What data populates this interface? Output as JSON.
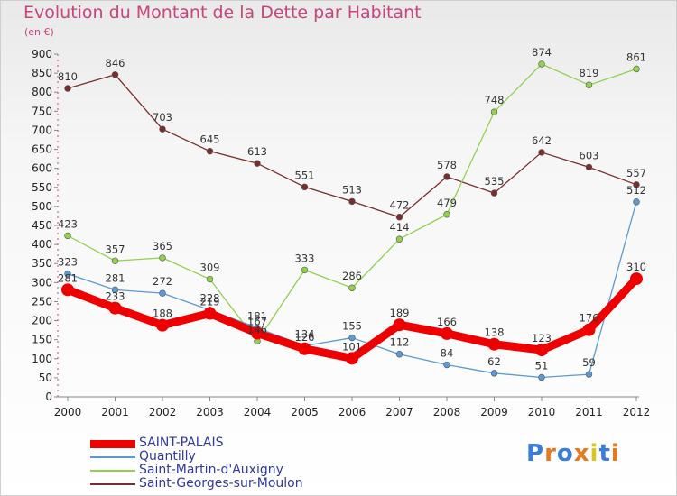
{
  "chart_data": {
    "type": "line",
    "title": "Evolution du Montant de la Dette par Habitant",
    "subtitle": "(en €)",
    "x": [
      "2000",
      "2001",
      "2002",
      "2003",
      "2004",
      "2005",
      "2006",
      "2007",
      "2008",
      "2009",
      "2010",
      "2011",
      "2012"
    ],
    "yticks": [
      "0",
      "50",
      "100",
      "150",
      "200",
      "250",
      "300",
      "350",
      "400",
      "450",
      "500",
      "550",
      "600",
      "650",
      "700",
      "750",
      "800",
      "850",
      "900"
    ],
    "ylim": [
      0,
      900
    ],
    "grid": false,
    "legend_position": "bottom-left",
    "series": [
      {
        "name": "SAINT-PALAIS",
        "color": "#ee0000",
        "values": [
          281,
          233,
          188,
          219,
          167,
          126,
          101,
          189,
          166,
          138,
          123,
          176,
          310
        ],
        "labels": [
          "281",
          "233",
          "188",
          "219",
          "167",
          "126",
          "101",
          "189",
          "166",
          "138",
          "123",
          "176",
          "310"
        ]
      },
      {
        "name": "Quantilly",
        "color": "#5a9ad5",
        "values": [
          323,
          281,
          272,
          228,
          181,
          134,
          155,
          112,
          84,
          62,
          51,
          59,
          512
        ],
        "labels": [
          "323",
          "281",
          "272",
          "228",
          "181",
          "134",
          "155",
          "112",
          "84",
          "62",
          "51",
          "59",
          "512"
        ]
      },
      {
        "name": "Saint-Martin-d'Auxigny",
        "color": "#92d050",
        "values": [
          423,
          357,
          365,
          309,
          146,
          333,
          286,
          414,
          479,
          748,
          874,
          819,
          861
        ],
        "labels": [
          "423",
          "357",
          "365",
          "309",
          "146",
          "333",
          "286",
          "414",
          "479",
          "748",
          "874",
          "819",
          "861"
        ]
      },
      {
        "name": "Saint-Georges-sur-Moulon",
        "color": "#7b2c2c",
        "values": [
          810,
          846,
          703,
          645,
          613,
          551,
          513,
          472,
          578,
          535,
          642,
          603,
          557
        ],
        "labels": [
          "810",
          "846",
          "703",
          "645",
          "613",
          "551",
          "513",
          "472",
          "578",
          "535",
          "642",
          "603",
          "557"
        ]
      }
    ]
  },
  "logo": {
    "text": "Proxiti",
    "colors": [
      "#3b7dd8",
      "#e8781e",
      "#3b7dd8",
      "#e8781e",
      "#d8c81e",
      "#3b7dd8",
      "#e8781e"
    ]
  }
}
